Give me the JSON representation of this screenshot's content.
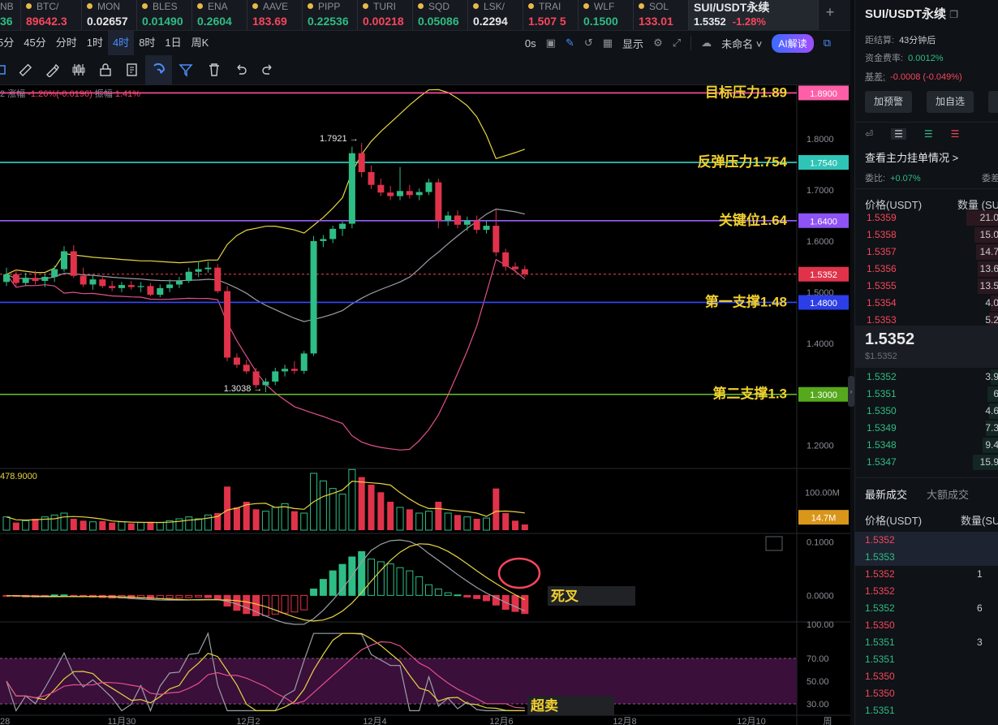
{
  "tickers": [
    {
      "name": "NB",
      "price": "36",
      "dir": "up",
      "w": 26
    },
    {
      "name": "BTC/",
      "price": "89642.3",
      "dir": "down",
      "w": 75
    },
    {
      "name": "MON",
      "price": "0.02657",
      "dir": "neutral",
      "w": 68
    },
    {
      "name": "BLES",
      "price": "0.01490",
      "dir": "up",
      "w": 68
    },
    {
      "name": "ENA",
      "price": "0.2604",
      "dir": "up",
      "w": 68
    },
    {
      "name": "AAVE",
      "price": "183.69",
      "dir": "down",
      "w": 68
    },
    {
      "name": "PIPP",
      "price": "0.22536",
      "dir": "up",
      "w": 68
    },
    {
      "name": "TURI",
      "price": "0.00218",
      "dir": "down",
      "w": 68
    },
    {
      "name": "SQD",
      "price": "0.05086",
      "dir": "up",
      "w": 68
    },
    {
      "name": "LSK/",
      "price": "0.2294",
      "dir": "neutral",
      "w": 68
    },
    {
      "name": "TRAI",
      "price": "1.507 5",
      "dir": "down",
      "w": 68
    },
    {
      "name": "WLF",
      "price": "0.1500",
      "dir": "up",
      "w": 68
    },
    {
      "name": "SOL",
      "price": "133.01",
      "dir": "down",
      "w": 68
    }
  ],
  "active_ticker": {
    "name": "SUI/USDT永续",
    "price": "1.5352",
    "change": "-1.28%"
  },
  "timeframes": [
    {
      "label": "5分",
      "active": false
    },
    {
      "label": "45分",
      "active": false
    },
    {
      "label": "分时",
      "active": false
    },
    {
      "label": "1时",
      "active": false
    },
    {
      "label": "4时",
      "active": true
    },
    {
      "label": "8时",
      "active": false
    },
    {
      "label": "1日",
      "active": false
    },
    {
      "label": "周K",
      "active": false
    }
  ],
  "toolbar": {
    "countdown": "0s",
    "display_label": "显示",
    "template_label": "未命名",
    "ai_label": "AI解读"
  },
  "chart_info": {
    "suffix": "2",
    "change_label": "涨幅",
    "change_value": "-1.26%(-0.0196)",
    "amp_label": "振幅",
    "amp_value": "1.41%"
  },
  "chart_data": {
    "type": "candlestick",
    "x_labels": [
      "28",
      "11月30",
      "12月2",
      "12月4",
      "12月6",
      "12月8",
      "12月10",
      "周"
    ],
    "price_ticks": [
      "1.8000",
      "1.7000",
      "1.6000",
      "1.5000",
      "1.4000",
      "1.3000",
      "1.2000"
    ],
    "price_range": [
      1.155,
      1.905
    ],
    "current_price": "1.5352",
    "level_lines": [
      {
        "label": "目标压力1.89",
        "value": 1.89,
        "tag": "1.8900",
        "color": "#ff4fa3",
        "tagColor": "#ff5fa8"
      },
      {
        "label": "反弹压力1.754",
        "value": 1.754,
        "tag": "1.7540",
        "color": "#33d1c4",
        "tagColor": "#2ec4b6"
      },
      {
        "label": "关键位1.64",
        "value": 1.64,
        "tag": "1.6400",
        "color": "#9b5cff",
        "tagColor": "#8e52f5"
      },
      {
        "label": "第一支撑1.48",
        "value": 1.48,
        "tag": "1.4800",
        "color": "#3449ff",
        "tagColor": "#2c3ee8"
      },
      {
        "label": "第二支撑1.3",
        "value": 1.3,
        "tag": "1.3000",
        "color": "#6ac22a",
        "tagColor": "#56a81c"
      }
    ],
    "high_label": "1.7921 →",
    "low_label": "1.3038 →",
    "candles": [
      [
        1.52,
        1.548,
        1.512,
        1.535
      ],
      [
        1.535,
        1.545,
        1.512,
        1.518
      ],
      [
        1.518,
        1.538,
        1.512,
        1.528
      ],
      [
        1.528,
        1.542,
        1.515,
        1.522
      ],
      [
        1.522,
        1.535,
        1.51,
        1.53
      ],
      [
        1.53,
        1.552,
        1.52,
        1.545
      ],
      [
        1.545,
        1.59,
        1.54,
        1.58
      ],
      [
        1.58,
        1.592,
        1.528,
        1.532
      ],
      [
        1.532,
        1.548,
        1.51,
        1.515
      ],
      [
        1.515,
        1.532,
        1.505,
        1.525
      ],
      [
        1.525,
        1.532,
        1.508,
        1.512
      ],
      [
        1.512,
        1.522,
        1.502,
        1.508
      ],
      [
        1.508,
        1.52,
        1.5,
        1.514
      ],
      [
        1.514,
        1.522,
        1.505,
        1.51
      ],
      [
        1.51,
        1.52,
        1.5,
        1.512
      ],
      [
        1.512,
        1.518,
        1.492,
        1.495
      ],
      [
        1.495,
        1.515,
        1.49,
        1.508
      ],
      [
        1.508,
        1.525,
        1.5,
        1.515
      ],
      [
        1.515,
        1.53,
        1.508,
        1.522
      ],
      [
        1.522,
        1.548,
        1.518,
        1.54
      ],
      [
        1.54,
        1.56,
        1.53,
        1.545
      ],
      [
        1.545,
        1.56,
        1.538,
        1.548
      ],
      [
        1.548,
        1.555,
        1.498,
        1.502
      ],
      [
        1.502,
        1.512,
        1.365,
        1.372
      ],
      [
        1.372,
        1.38,
        1.352,
        1.358
      ],
      [
        1.358,
        1.368,
        1.34,
        1.345
      ],
      [
        1.345,
        1.352,
        1.312,
        1.318
      ],
      [
        1.318,
        1.332,
        1.304,
        1.325
      ],
      [
        1.325,
        1.352,
        1.318,
        1.345
      ],
      [
        1.345,
        1.358,
        1.335,
        1.35
      ],
      [
        1.35,
        1.365,
        1.34,
        1.346
      ],
      [
        1.346,
        1.385,
        1.34,
        1.38
      ],
      [
        1.38,
        1.61,
        1.375,
        1.6
      ],
      [
        1.6,
        1.612,
        1.588,
        1.604
      ],
      [
        1.604,
        1.63,
        1.596,
        1.624
      ],
      [
        1.624,
        1.638,
        1.61,
        1.634
      ],
      [
        1.634,
        1.785,
        1.625,
        1.772
      ],
      [
        1.772,
        1.792,
        1.725,
        1.735
      ],
      [
        1.735,
        1.748,
        1.702,
        1.71
      ],
      [
        1.71,
        1.722,
        1.688,
        1.695
      ],
      [
        1.695,
        1.708,
        1.68,
        1.688
      ],
      [
        1.688,
        1.745,
        1.68,
        1.698
      ],
      [
        1.698,
        1.71,
        1.683,
        1.69
      ],
      [
        1.69,
        1.703,
        1.68,
        1.696
      ],
      [
        1.696,
        1.722,
        1.69,
        1.715
      ],
      [
        1.715,
        1.722,
        1.625,
        1.64
      ],
      [
        1.64,
        1.658,
        1.63,
        1.65
      ],
      [
        1.65,
        1.66,
        1.625,
        1.632
      ],
      [
        1.632,
        1.648,
        1.62,
        1.64
      ],
      [
        1.64,
        1.65,
        1.615,
        1.622
      ],
      [
        1.622,
        1.64,
        1.615,
        1.63
      ],
      [
        1.63,
        1.662,
        1.57,
        1.578
      ],
      [
        1.578,
        1.585,
        1.542,
        1.55
      ],
      [
        1.55,
        1.558,
        1.538,
        1.545
      ],
      [
        1.545,
        1.552,
        1.53,
        1.535
      ]
    ],
    "volume": {
      "label": "478.9000",
      "ticks": [
        "100.00M"
      ],
      "current_tag": "14.7M",
      "max_m": 150,
      "values": [
        35,
        20,
        25,
        30,
        35,
        40,
        45,
        30,
        25,
        22,
        24,
        20,
        22,
        18,
        20,
        22,
        20,
        25,
        30,
        35,
        30,
        40,
        45,
        115,
        60,
        75,
        55,
        50,
        60,
        70,
        50,
        45,
        150,
        130,
        110,
        95,
        160,
        140,
        120,
        100,
        75,
        60,
        55,
        45,
        50,
        75,
        45,
        40,
        35,
        30,
        32,
        110,
        45,
        25,
        15
      ]
    },
    "macd": {
      "ticks": [
        "0.1000",
        "0.0000"
      ],
      "range": [
        -0.045,
        0.11
      ],
      "annotation": "死叉",
      "hist": [
        -0.002,
        -0.002,
        -0.003,
        -0.003,
        -0.002,
        0.001,
        0.001,
        -0.001,
        -0.002,
        -0.003,
        -0.004,
        -0.005,
        -0.005,
        -0.006,
        -0.005,
        -0.006,
        -0.006,
        -0.005,
        -0.005,
        -0.004,
        -0.003,
        -0.004,
        -0.007,
        -0.02,
        -0.028,
        -0.034,
        -0.038,
        -0.038,
        -0.035,
        -0.033,
        -0.031,
        -0.027,
        0.012,
        0.03,
        0.046,
        0.058,
        0.072,
        0.082,
        0.068,
        0.063,
        0.059,
        0.052,
        0.046,
        0.035,
        0.02,
        0.012,
        0.005,
        0.001,
        -0.003,
        -0.006,
        -0.01,
        -0.018,
        -0.026,
        -0.03,
        -0.034
      ]
    },
    "rsi": {
      "ticks": [
        "100.00",
        "70.00",
        "50.00",
        "30.00"
      ],
      "annotation": "超卖"
    }
  },
  "right_panel": {
    "title": "SUI/USDT永续",
    "funding_countdown_label": "距结算:",
    "funding_countdown": "43分钟后",
    "funding_rate_label": "资金费率:",
    "funding_rate": "0.0012%",
    "basis_label": "基差:",
    "basis_value": "-0.0008 (-0.049%)",
    "btn_alert": "加预警",
    "btn_watch": "加自选",
    "view_orders": "查看主力挂单情况 >",
    "ratio_label": "委比:",
    "ratio_value": "+0.07%",
    "ratio_extra": "委差",
    "ob_header_price": "价格(USDT)",
    "ob_header_qty": "数量 (SU",
    "asks": [
      {
        "p": "1.5359",
        "q": "21.0",
        "w": 40
      },
      {
        "p": "1.5358",
        "q": "15.0",
        "w": 30
      },
      {
        "p": "1.5357",
        "q": "14.7",
        "w": 28
      },
      {
        "p": "1.5356",
        "q": "13.6",
        "w": 26
      },
      {
        "p": "1.5355",
        "q": "13.5",
        "w": 26
      },
      {
        "p": "1.5354",
        "q": "4.0",
        "w": 10
      },
      {
        "p": "1.5353",
        "q": "5.2",
        "w": 12
      }
    ],
    "last_price": "1.5352",
    "last_price_usd": "$1.5352",
    "bids": [
      {
        "p": "1.5352",
        "q": "3.9",
        "w": 10
      },
      {
        "p": "1.5351",
        "q": "6",
        "w": 14
      },
      {
        "p": "1.5350",
        "q": "4.6",
        "w": 12
      },
      {
        "p": "1.5349",
        "q": "7.3",
        "w": 16
      },
      {
        "p": "1.5348",
        "q": "9.4",
        "w": 20
      },
      {
        "p": "1.5347",
        "q": "15.9",
        "w": 32
      }
    ],
    "trades_tab_latest": "最新成交",
    "trades_tab_large": "大额成交",
    "trades_header_price": "价格(USDT)",
    "trades_header_qty": "数量(SU",
    "trades": [
      {
        "p": "1.5352",
        "q": "",
        "side": "sell"
      },
      {
        "p": "1.5353",
        "q": "",
        "side": "buy"
      },
      {
        "p": "1.5352",
        "q": "1",
        "side": "sell"
      },
      {
        "p": "1.5352",
        "q": "",
        "side": "sell"
      },
      {
        "p": "1.5352",
        "q": "6",
        "side": "buy"
      },
      {
        "p": "1.5350",
        "q": "",
        "side": "sell"
      },
      {
        "p": "1.5351",
        "q": "3",
        "side": "buy"
      },
      {
        "p": "1.5351",
        "q": "",
        "side": "buy"
      },
      {
        "p": "1.5350",
        "q": "",
        "side": "sell"
      },
      {
        "p": "1.5350",
        "q": "",
        "side": "sell"
      },
      {
        "p": "1.5351",
        "q": "",
        "side": "buy"
      }
    ]
  }
}
